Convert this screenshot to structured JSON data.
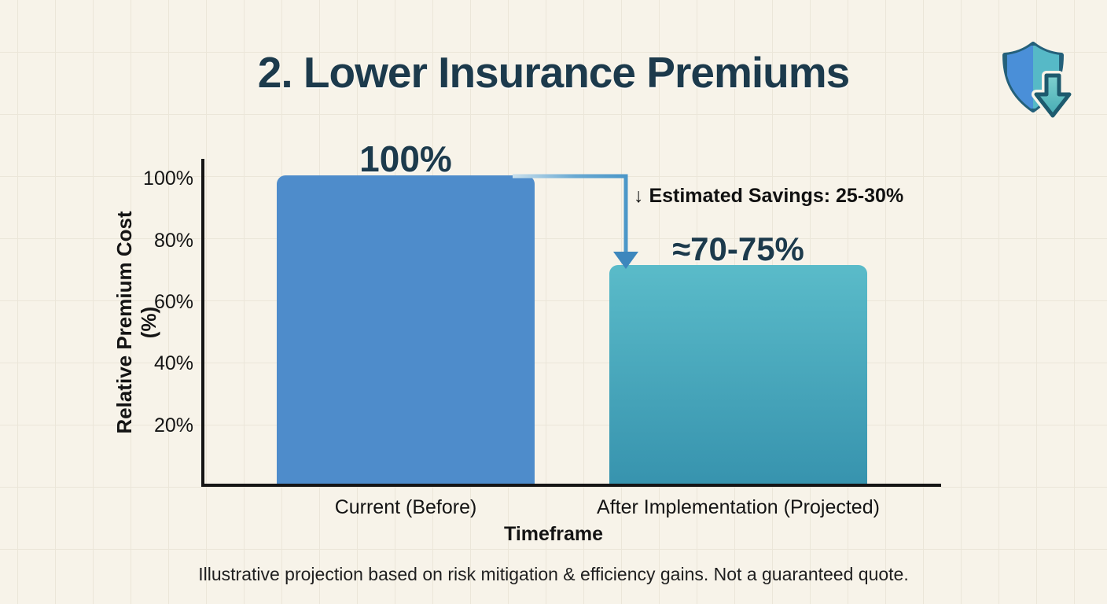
{
  "header": {
    "title": "2. Lower Insurance Premiums"
  },
  "chart_data": {
    "type": "bar",
    "categories": [
      "Current (Before)",
      "After Implementation (Projected)"
    ],
    "values": [
      100,
      71
    ],
    "value_labels": [
      "100%",
      "≈70-75%"
    ],
    "xlabel": "Timeframe",
    "ylabel": "Relative Premium Cost (%)",
    "ylim": [
      0,
      106
    ],
    "ytick_labels": [
      "100%",
      "80%",
      "60%",
      "40%",
      "20%"
    ],
    "ytick_values": [
      100,
      80,
      60,
      40,
      20
    ],
    "legend": "none",
    "background_grid": true,
    "annotation": {
      "text": "↓ Estimated Savings: 25-30%",
      "from": "top of Current (Before) bar",
      "to": "top of After Implementation (Projected) bar"
    }
  },
  "footer": {
    "note": "Illustrative projection based on risk mitigation & efficiency gains. Not a guaranteed quote."
  },
  "icons": {
    "shield": "shield-with-down-arrow"
  },
  "colors": {
    "background": "#f7f3e9",
    "grid_line": "#e9e4d6",
    "title_text": "#1c3a4c",
    "axis_line": "#151515",
    "axis_text": "#141414",
    "bar_current": "#4e8ccb",
    "bar_after_top": "#5abbc9",
    "bar_after_bottom": "#3793ae",
    "arrow_stroke": "#4a96c8",
    "arrow_head": "#3d87bd",
    "shield_blue": "#4a8fd8",
    "shield_teal": "#56b9c7",
    "shield_outline": "#24607a"
  }
}
